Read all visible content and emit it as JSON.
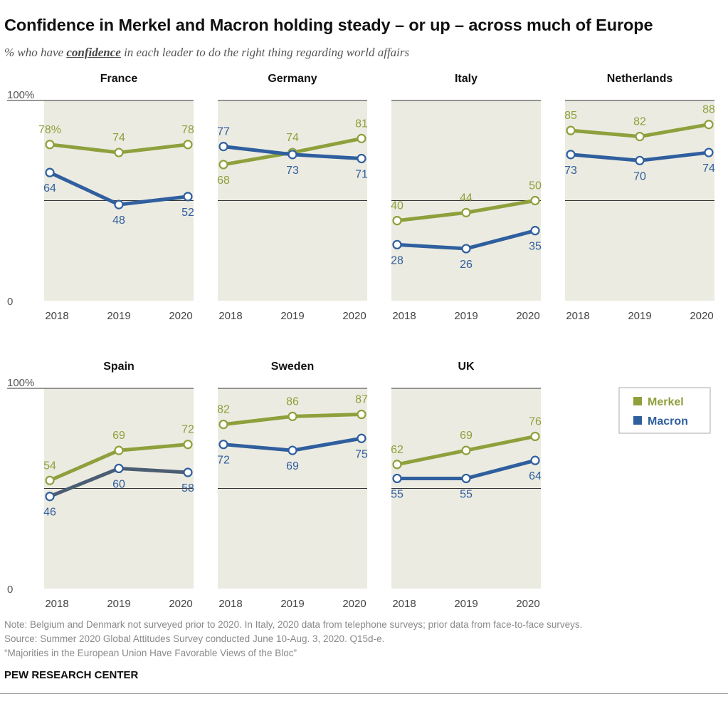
{
  "title": "Confidence in Merkel and Macron holding steady – or up – across much of Europe",
  "subtitle": {
    "pre": "% who have ",
    "em": "confidence",
    "post": " in each leader to do the right thing regarding world affairs"
  },
  "colors": {
    "merkel": "#8ea03c",
    "macron": "#2f5f9e",
    "macron_spain": "#4a5d72",
    "panel_bg": "#ecebe1"
  },
  "axis": {
    "top_label": "100%",
    "bottom_label": "0"
  },
  "chart_data": {
    "type": "line",
    "ylim": [
      0,
      100
    ],
    "x": [
      "2018",
      "2019",
      "2020"
    ],
    "legend": {
      "position": "right",
      "entries": [
        "Merkel",
        "Macron"
      ]
    },
    "panels": [
      {
        "country": "France",
        "series": [
          {
            "name": "Merkel",
            "values": [
              78,
              74,
              78
            ],
            "labels": [
              "78%",
              "74",
              "78"
            ]
          },
          {
            "name": "Macron",
            "values": [
              64,
              48,
              52
            ],
            "labels": [
              "64",
              "48",
              "52"
            ]
          }
        ]
      },
      {
        "country": "Germany",
        "series": [
          {
            "name": "Merkel",
            "values": [
              68,
              74,
              81
            ],
            "labels": [
              "68",
              "74",
              "81"
            ]
          },
          {
            "name": "Macron",
            "values": [
              77,
              73,
              71
            ],
            "labels": [
              "77",
              "73",
              "71"
            ]
          }
        ]
      },
      {
        "country": "Italy",
        "series": [
          {
            "name": "Merkel",
            "values": [
              40,
              44,
              50
            ],
            "labels": [
              "40",
              "44",
              "50"
            ]
          },
          {
            "name": "Macron",
            "values": [
              28,
              26,
              35
            ],
            "labels": [
              "28",
              "26",
              "35"
            ]
          }
        ]
      },
      {
        "country": "Netherlands",
        "series": [
          {
            "name": "Merkel",
            "values": [
              85,
              82,
              88
            ],
            "labels": [
              "85",
              "82",
              "88"
            ]
          },
          {
            "name": "Macron",
            "values": [
              73,
              70,
              74
            ],
            "labels": [
              "73",
              "70",
              "74"
            ]
          }
        ]
      },
      {
        "country": "Spain",
        "series": [
          {
            "name": "Merkel",
            "values": [
              54,
              69,
              72
            ],
            "labels": [
              "54",
              "69",
              "72"
            ]
          },
          {
            "name": "Macron",
            "values": [
              46,
              60,
              58
            ],
            "labels": [
              "46",
              "60",
              "58"
            ]
          }
        ]
      },
      {
        "country": "Sweden",
        "series": [
          {
            "name": "Merkel",
            "values": [
              82,
              86,
              87
            ],
            "labels": [
              "82",
              "86",
              "87"
            ]
          },
          {
            "name": "Macron",
            "values": [
              72,
              69,
              75
            ],
            "labels": [
              "72",
              "69",
              "75"
            ]
          }
        ]
      },
      {
        "country": "UK",
        "series": [
          {
            "name": "Merkel",
            "values": [
              62,
              69,
              76
            ],
            "labels": [
              "62",
              "69",
              "76"
            ]
          },
          {
            "name": "Macron",
            "values": [
              55,
              55,
              64
            ],
            "labels": [
              "55",
              "55",
              "64"
            ]
          }
        ]
      }
    ]
  },
  "notes": [
    "Note: Belgium and Denmark not surveyed prior to 2020. In Italy, 2020 data from telephone surveys; prior data from face-to-face surveys.",
    "Source: Summer 2020 Global Attitudes Survey conducted June 10-Aug. 3, 2020. Q15d-e.",
    "“Majorities in the European Union Have Favorable Views of the Bloc”"
  ],
  "brand": "PEW RESEARCH CENTER"
}
